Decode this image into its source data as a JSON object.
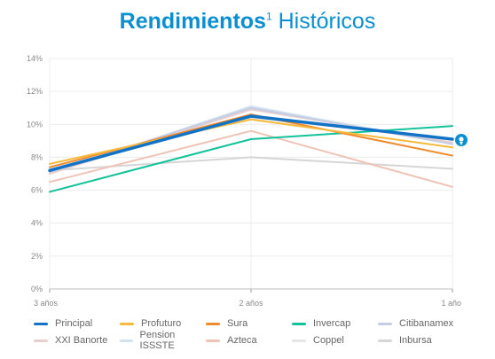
{
  "title": {
    "bold": "Rendimientos",
    "sup": "1",
    "rest": " Históricos"
  },
  "chart_data": {
    "type": "line",
    "x": [
      "3 años",
      "2 años",
      "1 año"
    ],
    "ylim": [
      0,
      14
    ],
    "yticks": [
      "0%",
      "2%",
      "4%",
      "6%",
      "8%",
      "10%",
      "12%",
      "14%"
    ],
    "grid": true,
    "legend_position": "bottom",
    "highlight_marker": "location-pin-icon",
    "series": [
      {
        "name": "Principal",
        "color": "#1273c6",
        "values": [
          7.2,
          10.5,
          9.1
        ]
      },
      {
        "name": "Profuturo",
        "color": "#f6b93b",
        "values": [
          7.6,
          10.3,
          8.6
        ]
      },
      {
        "name": "Sura",
        "color": "#f08a2c",
        "values": [
          7.4,
          10.6,
          8.1
        ]
      },
      {
        "name": "Invercap",
        "color": "#13c29a",
        "values": [
          5.9,
          9.1,
          9.9
        ]
      },
      {
        "name": "Citibanamex",
        "color": "#c6cde3",
        "values": [
          7.1,
          11.0,
          8.8
        ]
      },
      {
        "name": "XXI Banorte",
        "color": "#e8cfcf",
        "values": [
          7.0,
          10.9,
          8.9
        ]
      },
      {
        "name": "Pension ISSSTE",
        "color": "#d3e2f0",
        "values": [
          7.0,
          11.1,
          8.8
        ]
      },
      {
        "name": "Azteca",
        "color": "#efc4b6",
        "values": [
          6.5,
          9.6,
          6.2
        ]
      },
      {
        "name": "Coppel",
        "color": "#e6e6e6",
        "values": [
          7.3,
          10.4,
          9.1
        ]
      },
      {
        "name": "Inbursa",
        "color": "#d6d6d6",
        "values": [
          7.2,
          8.0,
          7.3
        ]
      }
    ]
  }
}
